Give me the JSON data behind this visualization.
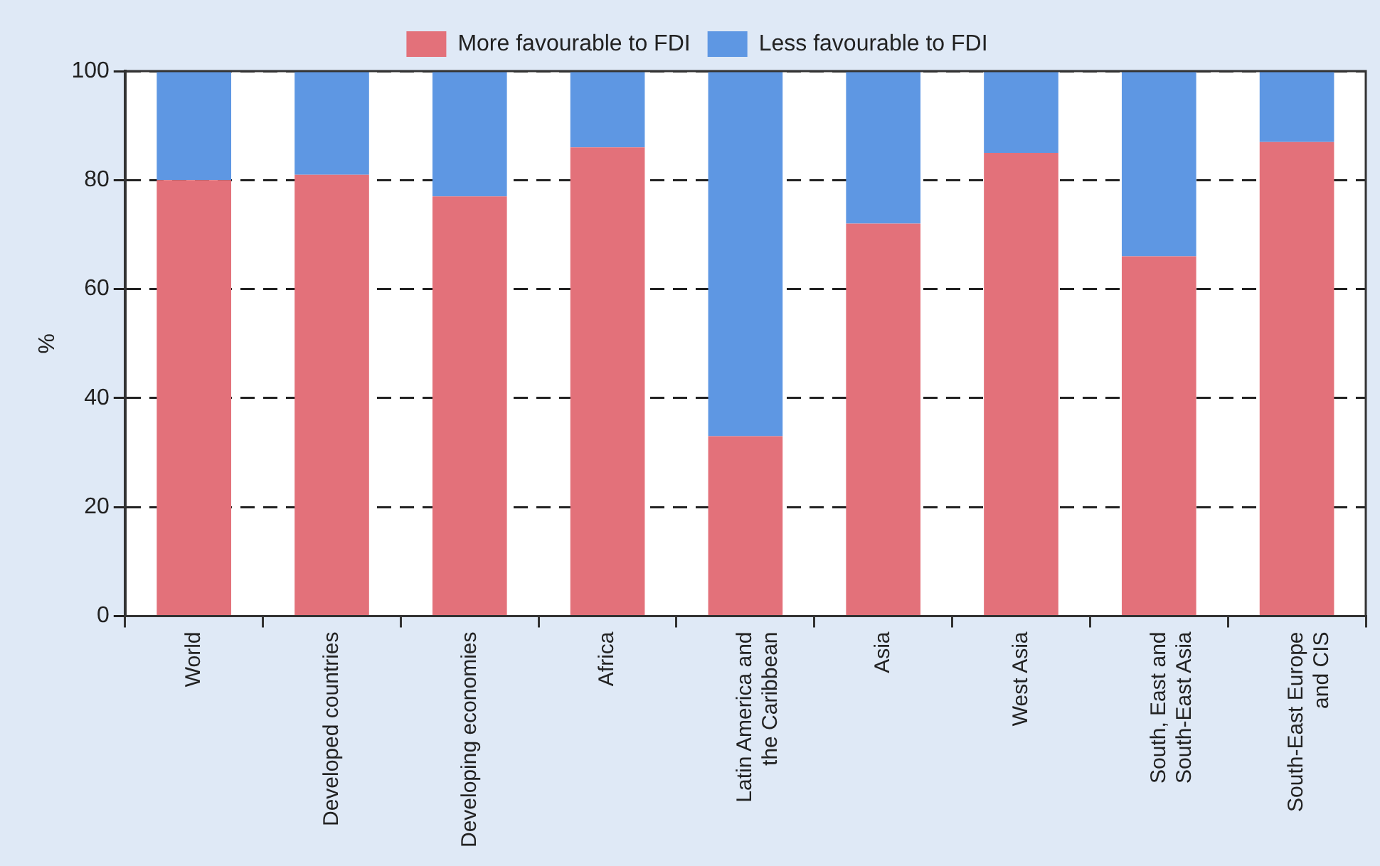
{
  "chart_data": {
    "type": "bar",
    "stacked": true,
    "ylabel": "%",
    "categories": [
      "World",
      "Developed countries",
      "Developing economies",
      "Africa",
      "Latin America and the Caribbean",
      "Asia",
      "West Asia",
      "South, East and South-East Asia",
      "South-East Europe and CIS"
    ],
    "series": [
      {
        "name": "More favourable to FDI",
        "color": "#e3717a",
        "values": [
          80,
          81,
          77,
          86,
          33,
          72,
          85,
          66,
          87
        ]
      },
      {
        "name": "Less favourable to FDI",
        "color": "#5e97e3",
        "values": [
          20,
          19,
          23,
          14,
          67,
          28,
          15,
          34,
          13
        ]
      }
    ],
    "ylim": [
      0,
      100
    ],
    "yticks": [
      0,
      20,
      40,
      60,
      80,
      100
    ],
    "grid": "y",
    "legend": "top"
  }
}
